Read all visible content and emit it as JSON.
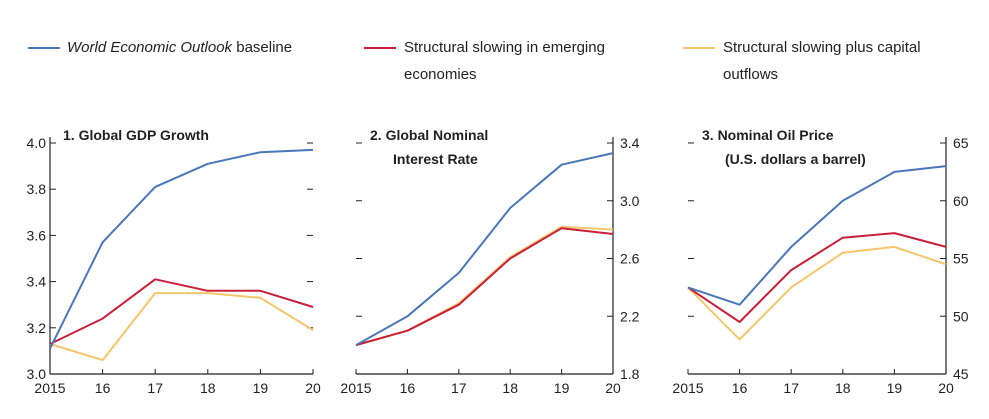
{
  "legend": {
    "baseline_italic": "World Economic Outlook",
    "baseline_rest": " baseline",
    "structural": "Structural slowing in emerging economies",
    "capital": "Structural slowing plus capital outflows"
  },
  "colors": {
    "baseline": "#4a77b8",
    "structural": "#c8203a",
    "capital": "#f3c66c",
    "text": "#231f20"
  },
  "chart_data": [
    {
      "type": "line",
      "title": "1. Global GDP Growth",
      "categories": [
        "2015",
        "16",
        "17",
        "18",
        "19",
        "20"
      ],
      "ylim": [
        3.0,
        4.0
      ],
      "ticks": [
        3.0,
        3.2,
        3.4,
        3.6,
        3.8,
        4.0
      ],
      "tick_labels": [
        "3.0",
        "3.2",
        "3.4",
        "3.6",
        "3.8",
        "4.0"
      ],
      "axis_side": "left",
      "series": [
        {
          "name": "World Economic Outlook baseline",
          "values": [
            3.11,
            3.57,
            3.81,
            3.91,
            3.96,
            3.97
          ]
        },
        {
          "name": "Structural slowing in emerging economies",
          "values": [
            3.13,
            3.24,
            3.41,
            3.36,
            3.36,
            3.29
          ]
        },
        {
          "name": "Structural slowing plus capital outflows",
          "values": [
            3.13,
            3.06,
            3.35,
            3.35,
            3.33,
            3.19
          ]
        }
      ]
    },
    {
      "type": "line",
      "title": "2. Global Nominal Interest Rate",
      "categories": [
        "2015",
        "16",
        "17",
        "18",
        "19",
        "20"
      ],
      "ylim": [
        1.8,
        3.4
      ],
      "ticks": [
        1.8,
        2.2,
        2.6,
        3.0,
        3.4
      ],
      "tick_labels": [
        "1.8",
        "2.2",
        "2.6",
        "3.0",
        "3.4"
      ],
      "axis_side": "right",
      "series": [
        {
          "name": "World Economic Outlook baseline",
          "values": [
            2.0,
            2.2,
            2.5,
            2.95,
            3.25,
            3.33
          ]
        },
        {
          "name": "Structural slowing in emerging economies",
          "values": [
            2.0,
            2.1,
            2.28,
            2.6,
            2.81,
            2.77
          ]
        },
        {
          "name": "Structural slowing plus capital outflows",
          "values": [
            2.0,
            2.1,
            2.29,
            2.61,
            2.82,
            2.8
          ]
        }
      ]
    },
    {
      "type": "line",
      "title": "3. Nominal Oil Price (U.S. dollars a barrel)",
      "categories": [
        "2015",
        "16",
        "17",
        "18",
        "19",
        "20"
      ],
      "ylim": [
        45,
        65
      ],
      "ticks": [
        45,
        50,
        55,
        60,
        65
      ],
      "tick_labels": [
        "45",
        "50",
        "55",
        "60",
        "65"
      ],
      "axis_side": "right",
      "series": [
        {
          "name": "World Economic Outlook baseline",
          "values": [
            52.5,
            51.0,
            56.0,
            60.0,
            62.5,
            63.0
          ]
        },
        {
          "name": "Structural slowing in emerging economies",
          "values": [
            52.5,
            49.5,
            54.0,
            56.8,
            57.2,
            56.0
          ]
        },
        {
          "name": "Structural slowing plus capital outflows",
          "values": [
            52.5,
            48.0,
            52.5,
            55.5,
            56.0,
            54.5
          ]
        }
      ]
    }
  ]
}
